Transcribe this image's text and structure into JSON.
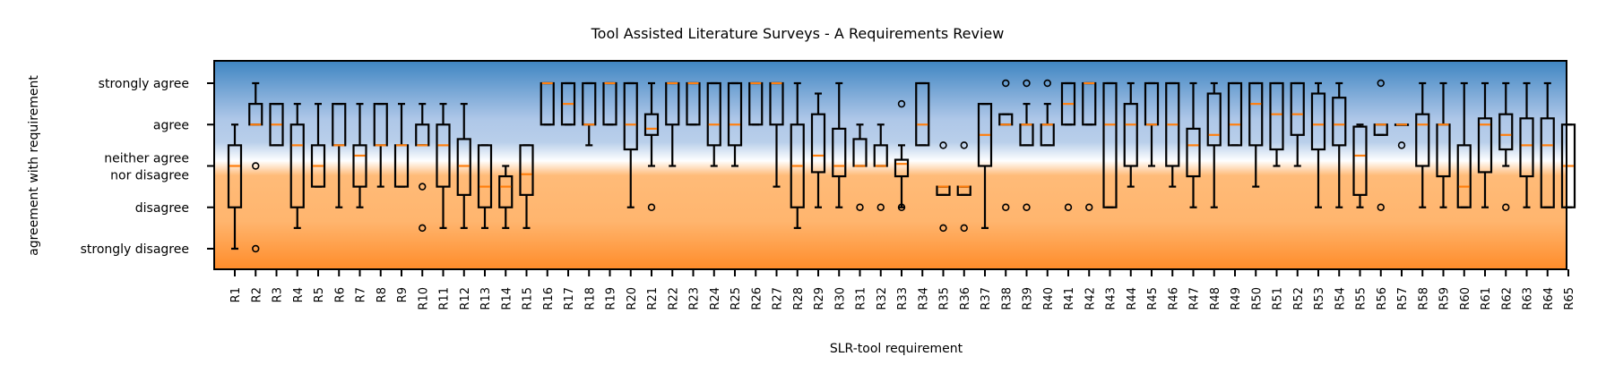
{
  "chart_data": {
    "type": "box",
    "title": "Tool Assisted Literature Surveys - A Requirements Review",
    "xlabel": "SLR-tool requirement",
    "ylabel": "agreement with requirement",
    "yticks": [
      {
        "value": 1,
        "label": "strongly disagree"
      },
      {
        "value": 2,
        "label": "disagree"
      },
      {
        "value": 3,
        "label": "neither agree nor disagree"
      },
      {
        "value": 4,
        "label": "agree"
      },
      {
        "value": 5,
        "label": "strongly agree"
      }
    ],
    "ylim": [
      0.5,
      5.5
    ],
    "grid": false,
    "colors": {
      "agree_band_top": "#3f85c2",
      "agree_band_light": "#aec7e8",
      "neutral_white": "#ffffff",
      "disagree_band_light": "#ffbb78",
      "disagree_band_bottom": "#ff8c2a",
      "box": "#000000",
      "median": "#ff7f0e"
    },
    "categories": [
      "R1",
      "R2",
      "R3",
      "R4",
      "R5",
      "R6",
      "R7",
      "R8",
      "R9",
      "R10",
      "R11",
      "R12",
      "R13",
      "R14",
      "R15",
      "R16",
      "R17",
      "R18",
      "R19",
      "R20",
      "R21",
      "R22",
      "R23",
      "R24",
      "R25",
      "R26",
      "R27",
      "R28",
      "R29",
      "R30",
      "R31",
      "R32",
      "R33",
      "R34",
      "R35",
      "R36",
      "R37",
      "R38",
      "R39",
      "R40",
      "R41",
      "R42",
      "R43",
      "R44",
      "R45",
      "R46",
      "R47",
      "R48",
      "R49",
      "R50",
      "R51",
      "R52",
      "R53",
      "R54",
      "R55",
      "R56",
      "R57",
      "R58",
      "R59",
      "R60",
      "R61",
      "R62",
      "R63",
      "R64",
      "R65"
    ],
    "boxes": [
      {
        "lw": 1.0,
        "q1": 2.0,
        "med": 3.0,
        "q3": 3.5,
        "hw": 4.0,
        "fl": []
      },
      {
        "lw": 4.0,
        "q1": 4.0,
        "med": 4.0,
        "q3": 4.5,
        "hw": 5.0,
        "fl": [
          3.0,
          1.0
        ]
      },
      {
        "lw": 3.5,
        "q1": 3.5,
        "med": 4.0,
        "q3": 4.5,
        "hw": 4.5,
        "fl": []
      },
      {
        "lw": 1.5,
        "q1": 2.0,
        "med": 3.5,
        "q3": 4.0,
        "hw": 4.5,
        "fl": []
      },
      {
        "lw": 2.5,
        "q1": 2.5,
        "med": 3.0,
        "q3": 3.5,
        "hw": 4.5,
        "fl": []
      },
      {
        "lw": 2.0,
        "q1": 3.5,
        "med": 3.5,
        "q3": 4.5,
        "hw": 4.5,
        "fl": []
      },
      {
        "lw": 2.0,
        "q1": 2.5,
        "med": 3.25,
        "q3": 3.5,
        "hw": 4.5,
        "fl": []
      },
      {
        "lw": 2.5,
        "q1": 3.5,
        "med": 3.5,
        "q3": 4.5,
        "hw": 4.5,
        "fl": []
      },
      {
        "lw": 2.5,
        "q1": 2.5,
        "med": 3.5,
        "q3": 3.5,
        "hw": 4.5,
        "fl": []
      },
      {
        "lw": 3.5,
        "q1": 3.5,
        "med": 3.5,
        "q3": 4.0,
        "hw": 4.5,
        "fl": [
          2.5,
          1.5
        ]
      },
      {
        "lw": 1.5,
        "q1": 2.5,
        "med": 3.5,
        "q3": 4.0,
        "hw": 4.5,
        "fl": []
      },
      {
        "lw": 1.5,
        "q1": 2.3,
        "med": 3.0,
        "q3": 3.65,
        "hw": 4.5,
        "fl": []
      },
      {
        "lw": 1.5,
        "q1": 2.0,
        "med": 2.5,
        "q3": 3.5,
        "hw": 3.5,
        "fl": []
      },
      {
        "lw": 1.5,
        "q1": 2.0,
        "med": 2.5,
        "q3": 2.75,
        "hw": 3.0,
        "fl": []
      },
      {
        "lw": 1.5,
        "q1": 2.3,
        "med": 2.8,
        "q3": 3.5,
        "hw": 3.5,
        "fl": []
      },
      {
        "lw": 4.0,
        "q1": 4.0,
        "med": 5.0,
        "q3": 5.0,
        "hw": 5.0,
        "fl": []
      },
      {
        "lw": 4.0,
        "q1": 4.0,
        "med": 4.5,
        "q3": 5.0,
        "hw": 5.0,
        "fl": []
      },
      {
        "lw": 3.5,
        "q1": 4.0,
        "med": 4.0,
        "q3": 5.0,
        "hw": 5.0,
        "fl": []
      },
      {
        "lw": 4.0,
        "q1": 4.0,
        "med": 5.0,
        "q3": 5.0,
        "hw": 5.0,
        "fl": []
      },
      {
        "lw": 2.0,
        "q1": 3.4,
        "med": 4.0,
        "q3": 5.0,
        "hw": 5.0,
        "fl": []
      },
      {
        "lw": 3.0,
        "q1": 3.75,
        "med": 3.9,
        "q3": 4.25,
        "hw": 5.0,
        "fl": [
          2.0
        ]
      },
      {
        "lw": 3.0,
        "q1": 4.0,
        "med": 5.0,
        "q3": 5.0,
        "hw": 5.0,
        "fl": []
      },
      {
        "lw": 4.0,
        "q1": 4.0,
        "med": 5.0,
        "q3": 5.0,
        "hw": 5.0,
        "fl": []
      },
      {
        "lw": 3.0,
        "q1": 3.5,
        "med": 4.0,
        "q3": 5.0,
        "hw": 5.0,
        "fl": []
      },
      {
        "lw": 3.0,
        "q1": 3.5,
        "med": 4.0,
        "q3": 5.0,
        "hw": 5.0,
        "fl": []
      },
      {
        "lw": 4.0,
        "q1": 4.0,
        "med": 5.0,
        "q3": 5.0,
        "hw": 5.0,
        "fl": []
      },
      {
        "lw": 2.5,
        "q1": 4.0,
        "med": 5.0,
        "q3": 5.0,
        "hw": 5.0,
        "fl": []
      },
      {
        "lw": 1.5,
        "q1": 2.0,
        "med": 3.0,
        "q3": 4.0,
        "hw": 5.0,
        "fl": []
      },
      {
        "lw": 2.0,
        "q1": 2.85,
        "med": 3.25,
        "q3": 4.25,
        "hw": 4.75,
        "fl": []
      },
      {
        "lw": 2.0,
        "q1": 2.75,
        "med": 3.0,
        "q3": 3.9,
        "hw": 5.0,
        "fl": []
      },
      {
        "lw": 3.0,
        "q1": 3.0,
        "med": 3.0,
        "q3": 3.65,
        "hw": 4.0,
        "fl": [
          2.0
        ]
      },
      {
        "lw": 3.0,
        "q1": 3.0,
        "med": 3.0,
        "q3": 3.5,
        "hw": 4.0,
        "fl": [
          2.0
        ]
      },
      {
        "lw": 2.0,
        "q1": 2.75,
        "med": 3.05,
        "q3": 3.15,
        "hw": 3.5,
        "fl": [
          4.5,
          2.0
        ]
      },
      {
        "lw": 3.5,
        "q1": 3.5,
        "med": 4.0,
        "q3": 5.0,
        "hw": 5.0,
        "fl": []
      },
      {
        "lw": 2.3,
        "q1": 2.3,
        "med": 2.5,
        "q3": 2.5,
        "hw": 2.5,
        "fl": [
          3.5,
          1.5
        ]
      },
      {
        "lw": 2.3,
        "q1": 2.3,
        "med": 2.5,
        "q3": 2.5,
        "hw": 2.5,
        "fl": [
          3.5,
          1.5
        ]
      },
      {
        "lw": 1.5,
        "q1": 3.0,
        "med": 3.75,
        "q3": 4.5,
        "hw": 4.5,
        "fl": []
      },
      {
        "lw": 4.0,
        "q1": 4.0,
        "med": 4.0,
        "q3": 4.25,
        "hw": 4.25,
        "fl": [
          5.0,
          2.0
        ]
      },
      {
        "lw": 3.5,
        "q1": 3.5,
        "med": 4.0,
        "q3": 4.0,
        "hw": 4.5,
        "fl": [
          5.0,
          2.0
        ]
      },
      {
        "lw": 3.5,
        "q1": 3.5,
        "med": 4.0,
        "q3": 4.0,
        "hw": 4.5,
        "fl": [
          5.0
        ]
      },
      {
        "lw": 4.0,
        "q1": 4.0,
        "med": 4.5,
        "q3": 5.0,
        "hw": 5.0,
        "fl": [
          2.0
        ]
      },
      {
        "lw": 4.0,
        "q1": 4.0,
        "med": 5.0,
        "q3": 5.0,
        "hw": 5.0,
        "fl": [
          2.0
        ]
      },
      {
        "lw": 2.0,
        "q1": 2.0,
        "med": 4.0,
        "q3": 5.0,
        "hw": 5.0,
        "fl": []
      },
      {
        "lw": 2.5,
        "q1": 3.0,
        "med": 4.0,
        "q3": 4.5,
        "hw": 5.0,
        "fl": []
      },
      {
        "lw": 3.0,
        "q1": 4.0,
        "med": 4.0,
        "q3": 5.0,
        "hw": 5.0,
        "fl": []
      },
      {
        "lw": 2.5,
        "q1": 3.0,
        "med": 4.0,
        "q3": 5.0,
        "hw": 5.0,
        "fl": []
      },
      {
        "lw": 2.0,
        "q1": 2.75,
        "med": 3.5,
        "q3": 3.9,
        "hw": 5.0,
        "fl": []
      },
      {
        "lw": 2.0,
        "q1": 3.5,
        "med": 3.75,
        "q3": 4.75,
        "hw": 5.0,
        "fl": []
      },
      {
        "lw": 3.5,
        "q1": 3.5,
        "med": 4.0,
        "q3": 5.0,
        "hw": 5.0,
        "fl": []
      },
      {
        "lw": 2.5,
        "q1": 3.5,
        "med": 4.5,
        "q3": 5.0,
        "hw": 5.0,
        "fl": []
      },
      {
        "lw": 3.0,
        "q1": 3.4,
        "med": 4.25,
        "q3": 5.0,
        "hw": 5.0,
        "fl": []
      },
      {
        "lw": 3.0,
        "q1": 3.75,
        "med": 4.25,
        "q3": 5.0,
        "hw": 5.0,
        "fl": []
      },
      {
        "lw": 2.0,
        "q1": 3.4,
        "med": 4.0,
        "q3": 4.75,
        "hw": 5.0,
        "fl": []
      },
      {
        "lw": 2.0,
        "q1": 3.5,
        "med": 4.0,
        "q3": 4.65,
        "hw": 5.0,
        "fl": []
      },
      {
        "lw": 2.0,
        "q1": 2.3,
        "med": 3.25,
        "q3": 3.95,
        "hw": 4.0,
        "fl": []
      },
      {
        "lw": 3.75,
        "q1": 3.75,
        "med": 4.0,
        "q3": 4.0,
        "hw": 4.0,
        "fl": [
          5.0,
          2.0
        ]
      },
      {
        "lw": 4.0,
        "q1": 4.0,
        "med": 4.0,
        "q3": 4.0,
        "hw": 4.0,
        "fl": [
          3.5
        ]
      },
      {
        "lw": 2.0,
        "q1": 3.0,
        "med": 4.0,
        "q3": 4.25,
        "hw": 5.0,
        "fl": []
      },
      {
        "lw": 2.0,
        "q1": 2.75,
        "med": 4.0,
        "q3": 4.0,
        "hw": 5.0,
        "fl": []
      },
      {
        "lw": 2.0,
        "q1": 2.0,
        "med": 2.5,
        "q3": 3.5,
        "hw": 5.0,
        "fl": []
      },
      {
        "lw": 2.0,
        "q1": 2.85,
        "med": 4.0,
        "q3": 4.15,
        "hw": 5.0,
        "fl": []
      },
      {
        "lw": 3.0,
        "q1": 3.4,
        "med": 3.75,
        "q3": 4.25,
        "hw": 5.0,
        "fl": [
          2.0
        ]
      },
      {
        "lw": 2.0,
        "q1": 2.75,
        "med": 3.5,
        "q3": 4.15,
        "hw": 5.0,
        "fl": []
      },
      {
        "lw": 2.0,
        "q1": 2.0,
        "med": 3.5,
        "q3": 4.15,
        "hw": 5.0,
        "fl": []
      },
      {
        "lw": 2.0,
        "q1": 2.0,
        "med": 3.0,
        "q3": 4.0,
        "hw": 4.0,
        "fl": []
      }
    ]
  }
}
